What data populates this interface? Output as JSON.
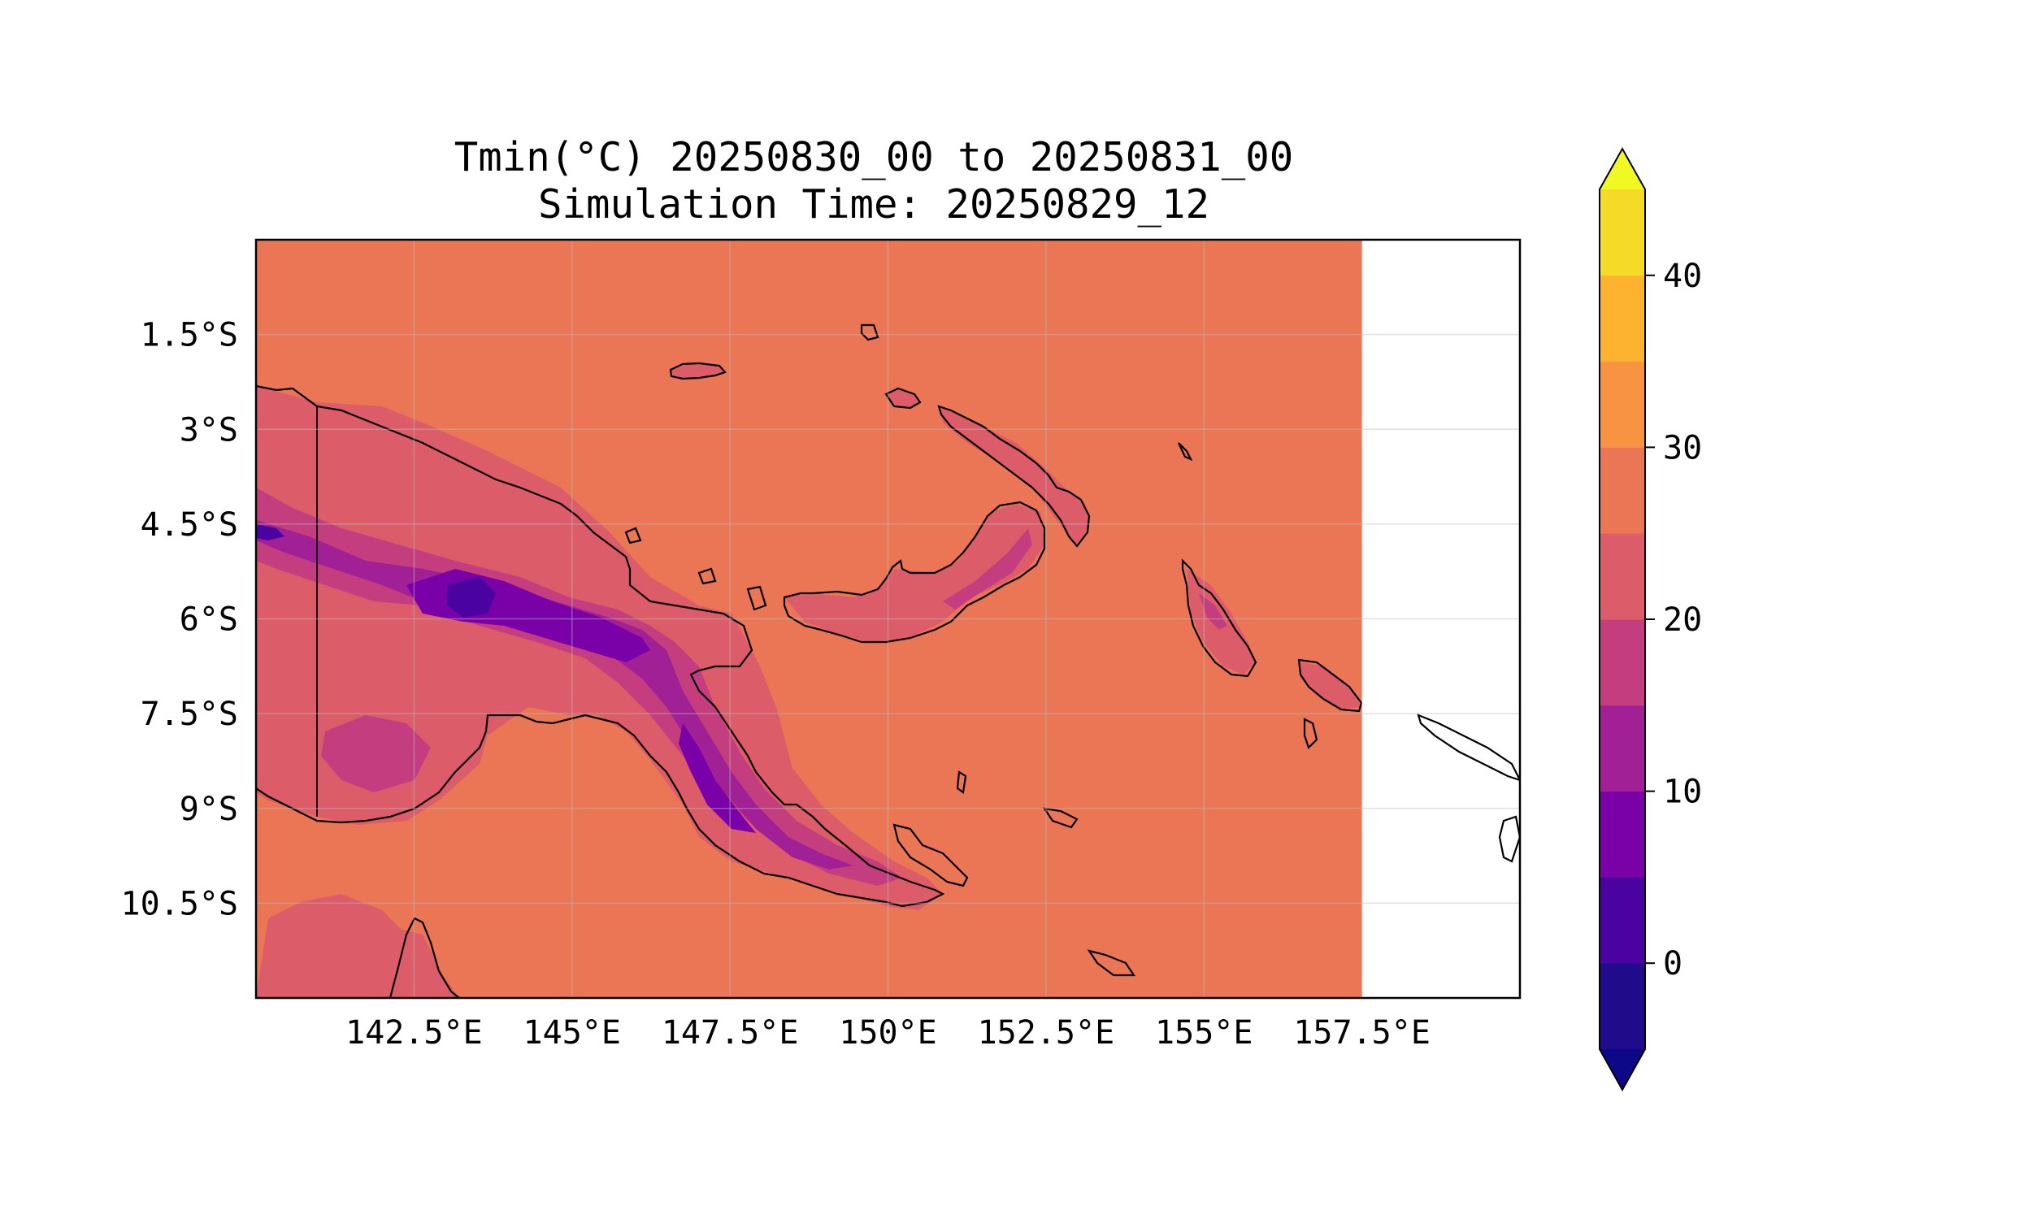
{
  "title": {
    "line1": "Tmin(°C) 20250830_00 to 20250831_00",
    "line2": "Simulation Time: 20250829_12"
  },
  "map": {
    "lat_ticks": [
      "1.5°S",
      "3°S",
      "4.5°S",
      "6°S",
      "7.5°S",
      "9°S",
      "10.5°S"
    ],
    "lon_ticks": [
      "142.5°E",
      "145°E",
      "147.5°E",
      "150°E",
      "152.5°E",
      "155°E",
      "157.5°E"
    ],
    "lon_range": [
      140.0,
      160.0
    ],
    "lat_range": [
      -12.0,
      0.0
    ],
    "data_lon_max": 157.5,
    "gridlines": true
  },
  "colorbar": {
    "levels": [
      -5,
      0,
      5,
      10,
      15,
      20,
      25,
      30,
      35,
      40,
      45
    ],
    "colors": [
      "#200b8a",
      "#4a02a0",
      "#7a01a8",
      "#a12095",
      "#c43e7f",
      "#dc5c69",
      "#eb7655",
      "#f79342",
      "#fdb32f",
      "#f5db27"
    ],
    "under_color": "#0d0887",
    "over_color": "#f0f921",
    "tick_labels": [
      "0",
      "10",
      "20",
      "30",
      "40"
    ],
    "tick_values": [
      0,
      10,
      20,
      30,
      40
    ],
    "extend": "both"
  },
  "colors": {
    "ocean_fill": "#eb7655",
    "land_fill": "#dc5c69",
    "highland_fill": "#c43e7f",
    "mountain_fill": "#a12095",
    "peak_fill": "#7a01a8",
    "summit_fill": "#4a02a0",
    "coastline": "#000000"
  }
}
